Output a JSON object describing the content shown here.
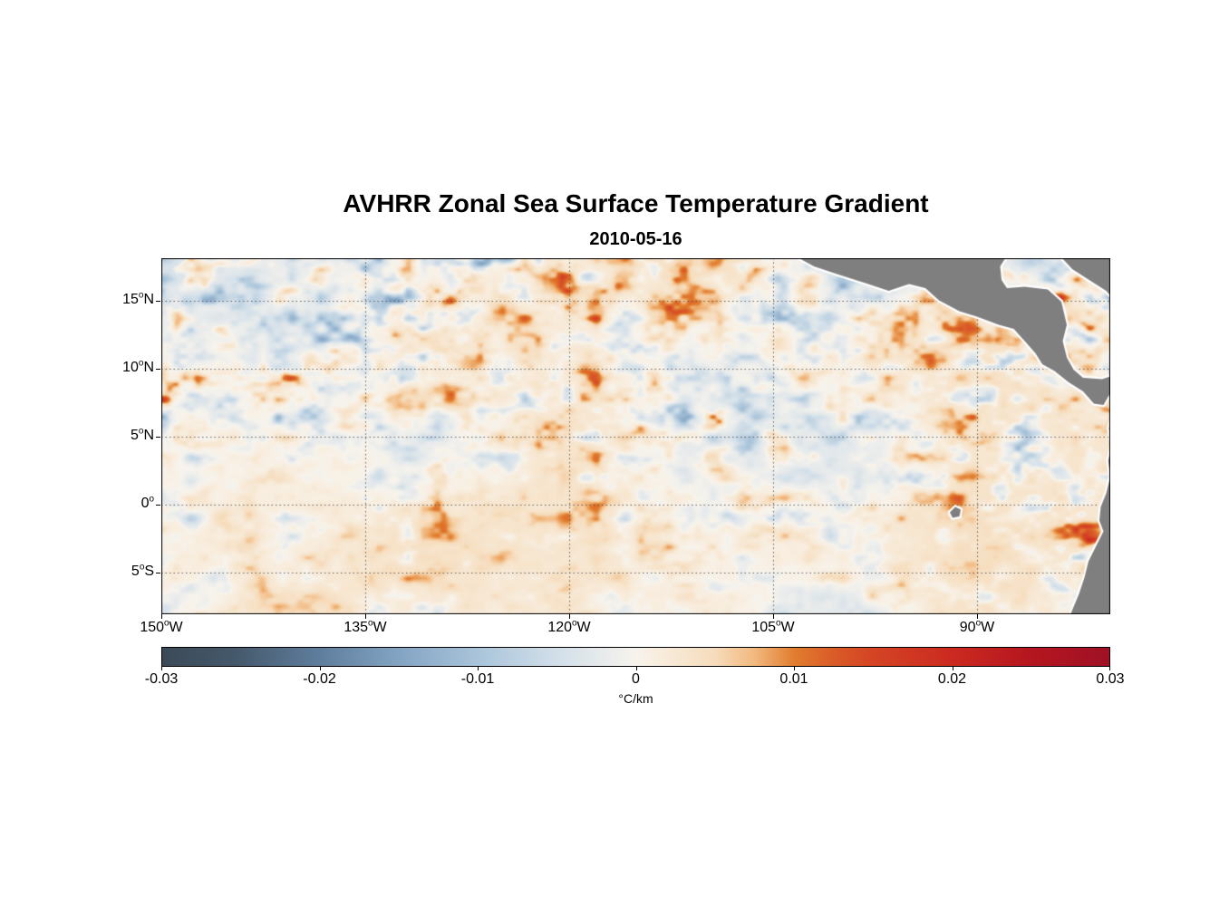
{
  "chart_data": {
    "type": "heatmap",
    "title": "AVHRR Zonal Sea Surface Temperature Gradient",
    "subtitle": "2010-05-16",
    "units": "°C/km",
    "value_range": [
      -0.03,
      0.03
    ],
    "extent": {
      "lon_min": -150,
      "lon_max": -80.2,
      "lat_min": -8.1,
      "lat_max": 18.1
    },
    "grid": {
      "style": "dotted",
      "color": "#464646"
    },
    "x_axis": {
      "ticks": [
        {
          "value": -150,
          "num": "150",
          "hem": "W"
        },
        {
          "value": -135,
          "num": "135",
          "hem": "W"
        },
        {
          "value": -120,
          "num": "120",
          "hem": "W"
        },
        {
          "value": -105,
          "num": "105",
          "hem": "W"
        },
        {
          "value": -90,
          "num": "90",
          "hem": "W"
        }
      ]
    },
    "y_axis": {
      "ticks": [
        {
          "value": 15,
          "num": "15",
          "hem": "N"
        },
        {
          "value": 10,
          "num": "10",
          "hem": "N"
        },
        {
          "value": 5,
          "num": "5",
          "hem": "N"
        },
        {
          "value": 0,
          "num": "0",
          "hem": ""
        },
        {
          "value": -5,
          "num": "5",
          "hem": "S"
        }
      ]
    },
    "colorbar": {
      "min": -0.03,
      "max": 0.03,
      "ticks": [
        -0.03,
        -0.02,
        -0.01,
        0,
        0.01,
        0.02,
        0.03
      ],
      "tick_labels": [
        "-0.03",
        "-0.02",
        "-0.01",
        "0",
        "0.01",
        "0.02",
        "0.03"
      ],
      "label": "°C/km",
      "stops": [
        [
          0.0,
          "#3b4a57"
        ],
        [
          0.075,
          "#45586a"
        ],
        [
          0.167,
          "#5f7e9e"
        ],
        [
          0.25,
          "#84a4c4"
        ],
        [
          0.333,
          "#a9c4da"
        ],
        [
          0.417,
          "#d2dfe9"
        ],
        [
          0.483,
          "#efefec"
        ],
        [
          0.5,
          "#f7f3ec"
        ],
        [
          0.517,
          "#f8efe2"
        ],
        [
          0.583,
          "#f6dcbc"
        ],
        [
          0.625,
          "#f2b97f"
        ],
        [
          0.667,
          "#e17d2e"
        ],
        [
          0.708,
          "#da5c28"
        ],
        [
          0.75,
          "#d44424"
        ],
        [
          0.833,
          "#cc2a20"
        ],
        [
          0.917,
          "#b5161f"
        ],
        [
          1.0,
          "#9f1126"
        ]
      ]
    },
    "land": {
      "color": "#7f7f7f",
      "coast_outline": "#ffffff",
      "polygons": {
        "central_america": [
          [
            -104.0,
            18.6
          ],
          [
            -102.0,
            17.5
          ],
          [
            -100.2,
            16.9
          ],
          [
            -98.0,
            16.2
          ],
          [
            -96.5,
            15.7
          ],
          [
            -95.0,
            16.2
          ],
          [
            -93.8,
            15.9
          ],
          [
            -92.8,
            15.0
          ],
          [
            -91.3,
            14.2
          ],
          [
            -90.0,
            13.8
          ],
          [
            -88.4,
            13.2
          ],
          [
            -87.3,
            12.9
          ],
          [
            -86.4,
            11.9
          ],
          [
            -85.7,
            11.1
          ],
          [
            -85.2,
            10.3
          ],
          [
            -84.3,
            9.8
          ],
          [
            -83.3,
            9.0
          ],
          [
            -82.2,
            8.3
          ],
          [
            -81.4,
            7.4
          ],
          [
            -80.7,
            7.3
          ],
          [
            -80.3,
            8.0
          ],
          [
            -79.6,
            8.7
          ],
          [
            -79.6,
            9.6
          ],
          [
            -80.8,
            9.2
          ],
          [
            -82.2,
            9.3
          ],
          [
            -82.9,
            9.9
          ],
          [
            -83.4,
            10.8
          ],
          [
            -83.7,
            12.0
          ],
          [
            -83.4,
            13.2
          ],
          [
            -83.8,
            14.9
          ],
          [
            -84.8,
            15.8
          ],
          [
            -86.5,
            16.0
          ],
          [
            -87.8,
            15.9
          ],
          [
            -88.2,
            16.5
          ],
          [
            -88.3,
            17.5
          ],
          [
            -87.6,
            18.6
          ]
        ],
        "caribbean_corner": [
          [
            -84.2,
            18.6
          ],
          [
            -83.0,
            17.3
          ],
          [
            -81.6,
            16.4
          ],
          [
            -80.5,
            15.7
          ],
          [
            -79.8,
            14.9
          ],
          [
            -79.5,
            14.6
          ],
          [
            -79.0,
            18.6
          ]
        ],
        "south_america": [
          [
            -79.6,
            7.6
          ],
          [
            -80.0,
            6.6
          ],
          [
            -80.3,
            5.6
          ],
          [
            -80.1,
            4.4
          ],
          [
            -80.35,
            3.2
          ],
          [
            -80.2,
            2.0
          ],
          [
            -80.5,
            0.8
          ],
          [
            -80.9,
            -0.2
          ],
          [
            -81.0,
            -1.2
          ],
          [
            -80.7,
            -2.0
          ],
          [
            -81.2,
            -3.0
          ],
          [
            -81.8,
            -4.2
          ],
          [
            -82.1,
            -5.4
          ],
          [
            -82.5,
            -6.6
          ],
          [
            -83.0,
            -7.8
          ],
          [
            -83.3,
            -8.6
          ],
          [
            -79.0,
            -8.6
          ],
          [
            -79.0,
            7.6
          ]
        ],
        "galapagos": [
          [
            -91.6,
            -0.2
          ],
          [
            -91.2,
            -0.4
          ],
          [
            -91.3,
            -0.9
          ],
          [
            -91.8,
            -1.0
          ],
          [
            -92.0,
            -0.6
          ]
        ]
      }
    },
    "render": {
      "seed": 20100516
    }
  }
}
